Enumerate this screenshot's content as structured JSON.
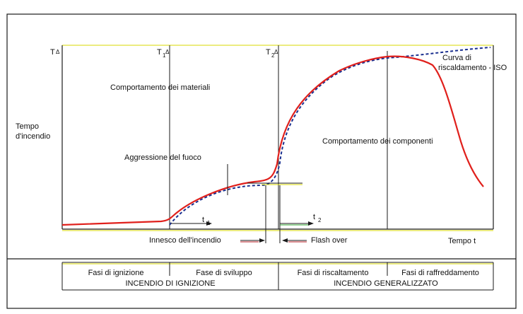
{
  "colors": {
    "fire_curve": "#e0201c",
    "iso_curve": "#1a2f8f",
    "frame": "#1a1a1a",
    "accent_line": "#d8d800"
  },
  "labels": {
    "t_axis": "T",
    "t1": "T",
    "t1_sub": "1",
    "t2": "T",
    "t2_sub": "2",
    "y_label_line1": "Tempo",
    "y_label_line2": "d'incendio",
    "materiali": "Comportamento dei materiali",
    "aggressione": "Aggressione del fuoco",
    "componenti": "Comportamento dei componenti",
    "iso_line1": "Curva di",
    "iso_line2": "riscaldamento - ISO",
    "small_t": "t",
    "small_t1_sub": "1",
    "small_t2_sub": "2",
    "innesco": "Innesco dell'incendio",
    "flash_over": "Flash over",
    "tempo_t": "Tempo t"
  },
  "phases": [
    "Fasi di ignizione",
    "Fase di sviluppo",
    "Fasi di riscaltamento",
    "Fasi di raffreddamento"
  ],
  "groups": [
    "INCENDIO DI IGNIZIONE",
    "INCENDIO GENERALIZZATO"
  ]
}
